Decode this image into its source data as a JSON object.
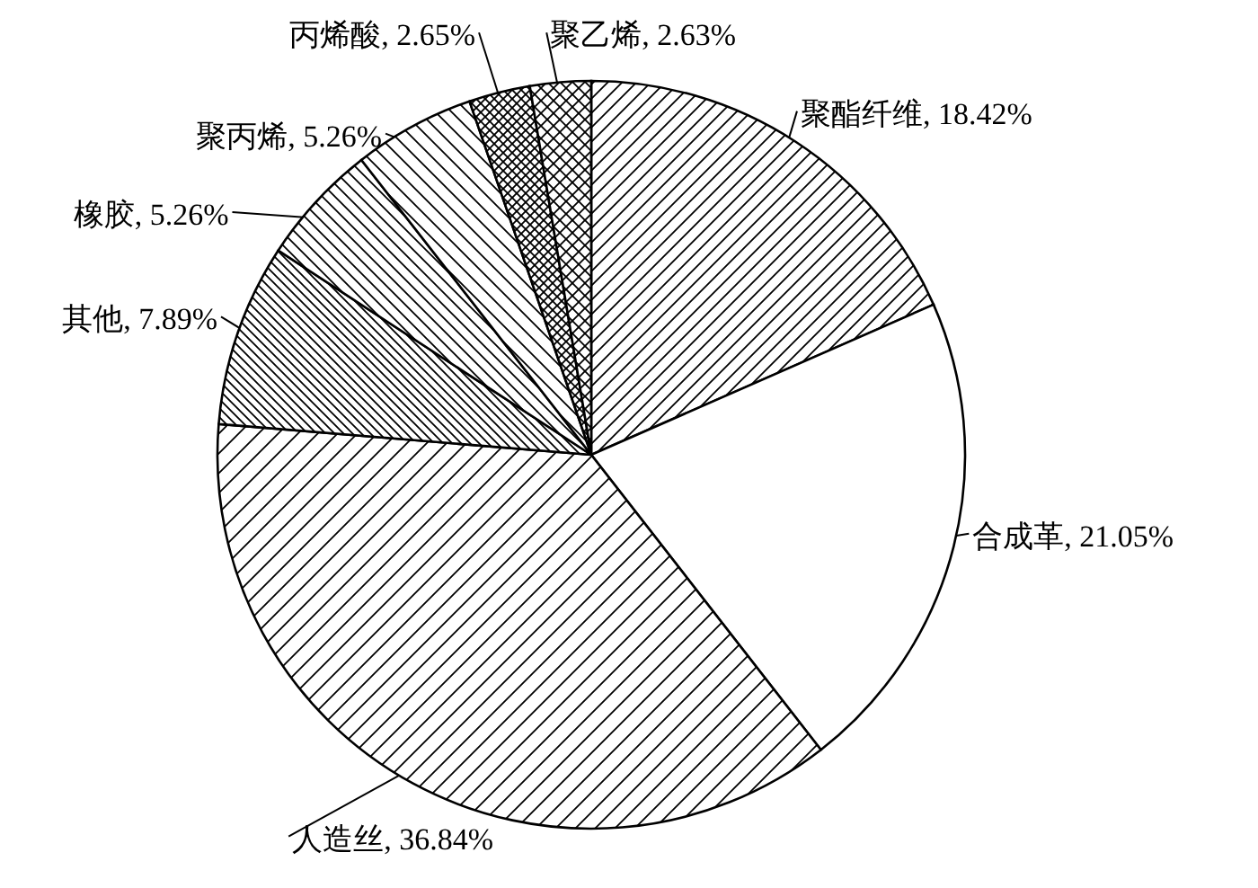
{
  "chart_data": {
    "type": "pie",
    "categories": [
      "聚酯纤维",
      "合成革",
      "人造丝",
      "其他",
      "橡胶",
      "聚丙烯",
      "丙烯酸",
      "聚乙烯"
    ],
    "values": [
      18.42,
      21.05,
      36.84,
      7.89,
      5.26,
      5.26,
      2.65,
      2.63
    ],
    "value_labels": [
      "18.42%",
      "21.05%",
      "36.84%",
      "7.89%",
      "5.26%",
      "5.26%",
      "2.65%",
      "2.63%"
    ]
  }
}
